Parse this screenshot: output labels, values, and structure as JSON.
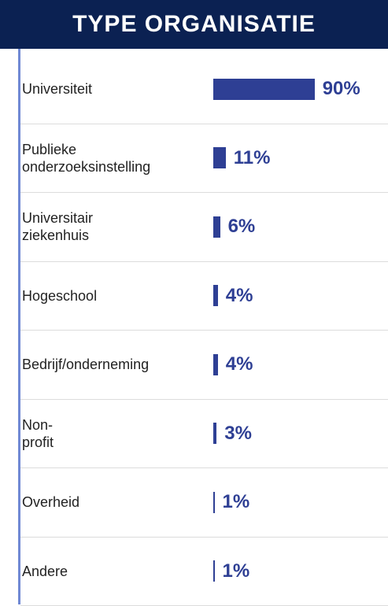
{
  "chart_data": {
    "type": "bar",
    "orientation": "horizontal",
    "title": "TYPE ORGANISATIE",
    "categories": [
      "Universiteit",
      "Publieke onderzoeksinstelling",
      "Universitair ziekenhuis",
      "Hogeschool",
      "Bedrijf/onderneming",
      "Non-profit",
      "Overheid",
      "Andere"
    ],
    "values": [
      90,
      11,
      6,
      4,
      4,
      3,
      1,
      1
    ],
    "value_labels": [
      "90%",
      "11%",
      "6%",
      "4%",
      "4%",
      "3%",
      "1%",
      "1%"
    ],
    "color": "#2e3f94"
  }
}
